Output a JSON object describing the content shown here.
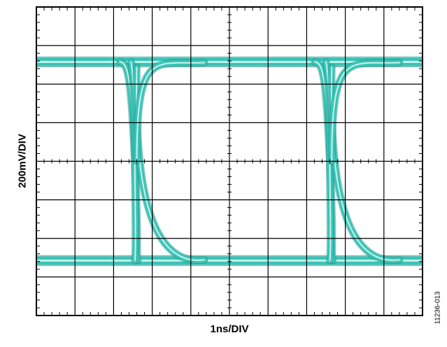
{
  "chart_data": {
    "type": "line",
    "title": "",
    "xlabel": "1ns/DIV",
    "ylabel": "200mV/DIV",
    "x_divisions": 10,
    "y_divisions": 8,
    "grid": true,
    "legend": "none",
    "x_unit": "ns",
    "y_unit": "mV",
    "xlim": [
      0,
      10
    ],
    "ylim": [
      -800,
      800
    ],
    "high_level_mv": [
      505,
      525
    ],
    "low_level_mv": [
      -525,
      -505
    ],
    "crossing_times_ns": [
      2.55,
      7.6
    ],
    "rise_time_ns": 0.15,
    "fall_time_ns": 0.9,
    "trace_color": "#39c4b6",
    "trace_edge_color": "#1d8f84"
  },
  "figure_id": "11236-013"
}
